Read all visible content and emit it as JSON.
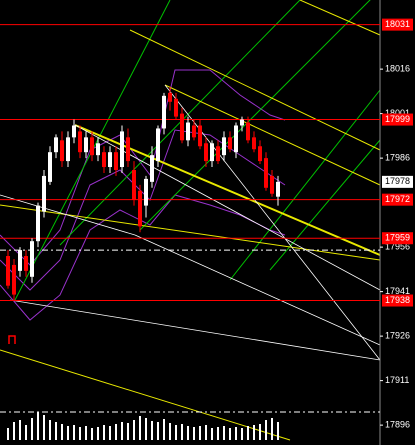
{
  "chart_data": {
    "type": "candlestick",
    "background": "#000000",
    "up_color": "#ffffff",
    "down_color": "#ff0000",
    "level_color": "#ff0000",
    "ylim": [
      17889.3,
      18039.3
    ],
    "yticks": [
      18016,
      18001,
      17986,
      17956,
      17941,
      17926,
      17911,
      17896
    ],
    "red_levels": [
      18031,
      17999,
      17972,
      17959,
      17938
    ],
    "current_price": 17978,
    "dashed_level": 17955,
    "open": [
      17953,
      17950,
      17948,
      17953,
      17946,
      17958,
      17968,
      17978,
      17988,
      17992,
      17985,
      17993,
      17995,
      17988,
      17993,
      17987,
      17988,
      17983,
      17988,
      17983,
      17993,
      17982,
      17975,
      17970,
      17978,
      17985,
      17996,
      18008,
      18006,
      18001,
      17992,
      17997,
      17997,
      17991,
      17985,
      17990,
      17987,
      17993,
      17988,
      17997,
      17998,
      17993,
      17990,
      17986,
      17980,
      17973
    ],
    "high": [
      17955,
      17952,
      17956,
      17955,
      17959,
      17971,
      17982,
      17990,
      17994,
      17995,
      17995,
      17999,
      17997,
      17995,
      17995,
      17993,
      17990,
      17990,
      17990,
      17997,
      17996,
      17985,
      17977,
      17980,
      17990,
      17997,
      18008,
      18010,
      18008,
      18003,
      18000,
      17999,
      17999,
      17993,
      17992,
      17992,
      17995,
      17995,
      17998,
      18000,
      18000,
      17995,
      17992,
      17988,
      17982,
      17980
    ],
    "low": [
      17942,
      17938,
      17946,
      17946,
      17944,
      17956,
      17966,
      17977,
      17986,
      17983,
      17983,
      17991,
      17986,
      17986,
      17985,
      17985,
      17981,
      17981,
      17980,
      17981,
      17983,
      17970,
      17961,
      17966,
      17976,
      17983,
      17994,
      18002,
      17999,
      17991,
      17990,
      17992,
      17989,
      17983,
      17983,
      17984,
      17985,
      17988,
      17986,
      17995,
      17991,
      17988,
      17984,
      17975,
      17973,
      17970
    ],
    "close": [
      17943,
      17940,
      17955,
      17948,
      17958,
      17970,
      17980,
      17988,
      17993,
      17985,
      17993,
      17997,
      17988,
      17993,
      17987,
      17991,
      17983,
      17988,
      17982,
      17995,
      17985,
      17972,
      17963,
      17979,
      17987,
      17996,
      18007,
      18005,
      18000,
      17992,
      17998,
      17993,
      17990,
      17985,
      17991,
      17985,
      17993,
      17989,
      17997,
      17999,
      17992,
      17989,
      17985,
      17976,
      17974,
      17978
    ],
    "volume_lim": [
      0,
      40
    ],
    "volume": [
      12,
      18,
      20,
      15,
      22,
      28,
      25,
      20,
      18,
      16,
      14,
      15,
      13,
      14,
      12,
      13,
      15,
      14,
      16,
      18,
      17,
      20,
      24,
      22,
      19,
      18,
      21,
      17,
      15,
      16,
      14,
      13,
      14,
      15,
      12,
      13,
      14,
      12,
      13,
      12,
      14,
      15,
      16,
      20,
      22,
      18
    ]
  }
}
